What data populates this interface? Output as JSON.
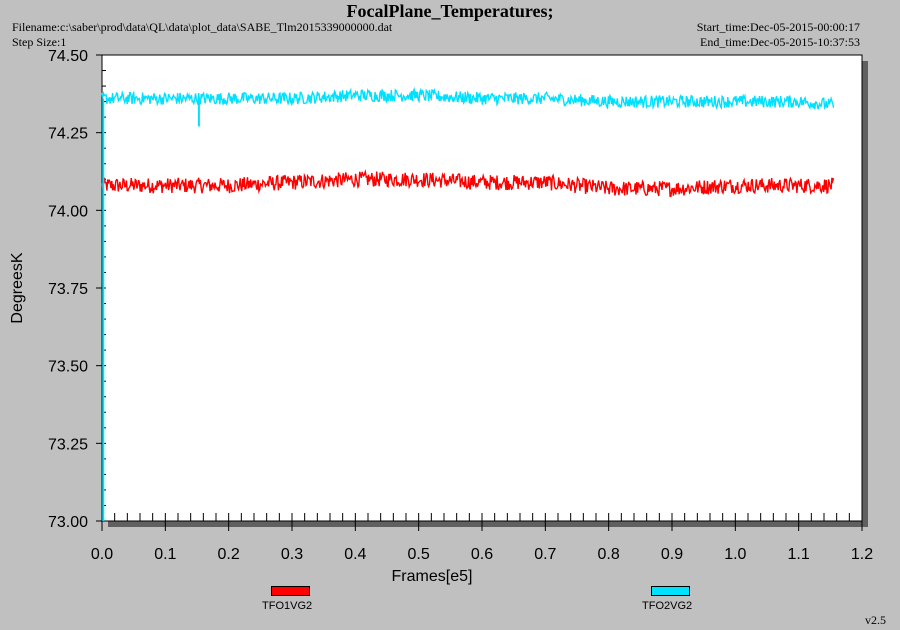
{
  "header": {
    "title": "FocalPlane_Temperatures;",
    "filename": "Filename:c:\\saber\\prod\\data\\QL\\data\\plot_data\\SABE_Tlm2015339000000.dat",
    "step_size": "Step Size:1",
    "start_time": "Start_time:Dec-05-2015-00:00:17",
    "end_time": "End_time:Dec-05-2015-10:37:53"
  },
  "legend": {
    "items": [
      {
        "label": "TFO1VG2",
        "color": "#ff0000"
      },
      {
        "label": "TFO2VG2",
        "color": "#00e0ff"
      }
    ]
  },
  "version": "v2.5",
  "chart_data": {
    "type": "line",
    "title": "FocalPlane_Temperatures;",
    "xlabel": "Frames[e5]",
    "ylabel": "DegreesK",
    "xlim": [
      0.0,
      1.2
    ],
    "ylim": [
      73.0,
      74.5
    ],
    "x_ticks": [
      "0.0",
      "0.1",
      "0.2",
      "0.3",
      "0.4",
      "0.5",
      "0.6",
      "0.7",
      "0.8",
      "0.9",
      "1.0",
      "1.1",
      "1.2"
    ],
    "y_ticks": [
      "73.00",
      "73.25",
      "73.50",
      "73.75",
      "74.00",
      "74.25",
      "74.50"
    ],
    "grid": false,
    "legend_position": "bottom",
    "series": [
      {
        "name": "TFO1VG2",
        "color": "#ff0000",
        "x_range": [
          0.0,
          1.155
        ],
        "trend_x": [
          0.0,
          0.1,
          0.2,
          0.3,
          0.4,
          0.5,
          0.6,
          0.7,
          0.8,
          0.9,
          1.0,
          1.1,
          1.155
        ],
        "trend_y": [
          74.08,
          74.08,
          74.08,
          74.09,
          74.1,
          74.1,
          74.09,
          74.09,
          74.07,
          74.07,
          74.08,
          74.08,
          74.08
        ],
        "spread": 0.05
      },
      {
        "name": "TFO2VG2",
        "color": "#00e0ff",
        "x_range": [
          0.0,
          1.155
        ],
        "trend_x": [
          0.0,
          0.1,
          0.2,
          0.3,
          0.4,
          0.5,
          0.6,
          0.7,
          0.8,
          0.9,
          1.0,
          1.1,
          1.155
        ],
        "trend_y": [
          74.36,
          74.36,
          74.36,
          74.36,
          74.37,
          74.37,
          74.36,
          74.36,
          74.35,
          74.35,
          74.35,
          74.35,
          74.34
        ],
        "spread": 0.04
      }
    ]
  }
}
